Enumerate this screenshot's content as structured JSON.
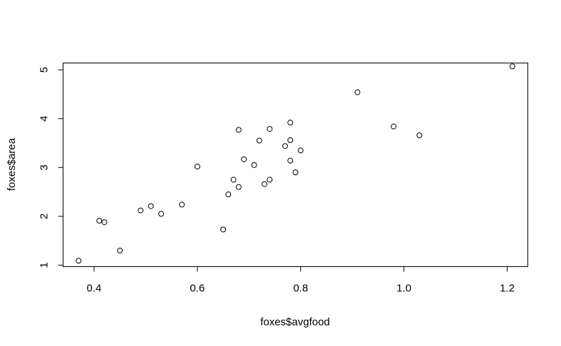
{
  "chart_data": {
    "type": "scatter",
    "title": "",
    "xlabel": "foxes$avgfood",
    "ylabel": "foxes$area",
    "xlim": [
      0.34,
      1.24
    ],
    "ylim": [
      0.97,
      5.14
    ],
    "xticks": [
      0.4,
      0.6,
      0.8,
      1.0,
      1.2
    ],
    "xtick_labels": [
      "0.4",
      "0.6",
      "0.8",
      "1.0",
      "1.2"
    ],
    "yticks": [
      1,
      2,
      3,
      4,
      5
    ],
    "ytick_labels": [
      "1",
      "2",
      "3",
      "4",
      "5"
    ],
    "grid": false,
    "marker": "open-circle",
    "points": [
      {
        "x": 0.37,
        "y": 1.09
      },
      {
        "x": 0.41,
        "y": 1.91
      },
      {
        "x": 0.42,
        "y": 1.88
      },
      {
        "x": 0.45,
        "y": 1.3
      },
      {
        "x": 0.49,
        "y": 2.12
      },
      {
        "x": 0.51,
        "y": 2.21
      },
      {
        "x": 0.53,
        "y": 2.05
      },
      {
        "x": 0.57,
        "y": 2.24
      },
      {
        "x": 0.6,
        "y": 3.02
      },
      {
        "x": 0.65,
        "y": 1.73
      },
      {
        "x": 0.66,
        "y": 2.45
      },
      {
        "x": 0.67,
        "y": 2.75
      },
      {
        "x": 0.68,
        "y": 2.6
      },
      {
        "x": 0.68,
        "y": 3.77
      },
      {
        "x": 0.69,
        "y": 3.17
      },
      {
        "x": 0.71,
        "y": 3.05
      },
      {
        "x": 0.72,
        "y": 3.55
      },
      {
        "x": 0.73,
        "y": 2.66
      },
      {
        "x": 0.74,
        "y": 2.75
      },
      {
        "x": 0.74,
        "y": 3.79
      },
      {
        "x": 0.77,
        "y": 3.44
      },
      {
        "x": 0.78,
        "y": 3.14
      },
      {
        "x": 0.78,
        "y": 3.56
      },
      {
        "x": 0.78,
        "y": 3.92
      },
      {
        "x": 0.79,
        "y": 2.9
      },
      {
        "x": 0.8,
        "y": 3.35
      },
      {
        "x": 0.91,
        "y": 4.54
      },
      {
        "x": 0.98,
        "y": 3.84
      },
      {
        "x": 1.03,
        "y": 3.66
      },
      {
        "x": 1.21,
        "y": 5.07
      }
    ]
  }
}
